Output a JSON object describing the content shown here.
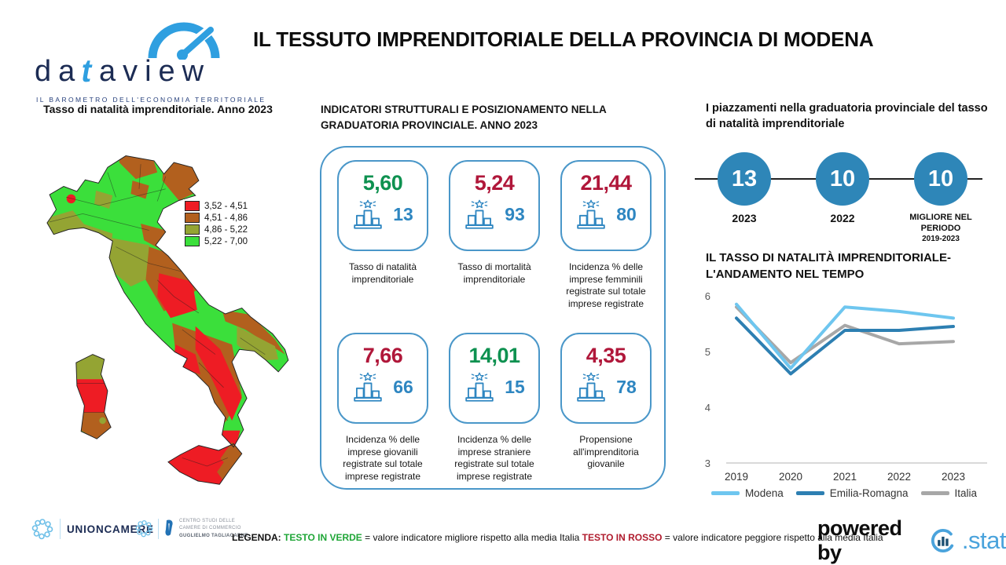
{
  "theme": {
    "accent": "#2e86c1",
    "cardBorder": "#4a97c9",
    "green": "#0e9150",
    "red": "#b0173a",
    "circleBlue": "#2e86b8",
    "navy": "#1c2c54",
    "logoBlue": "#2f9fe0",
    "statBlue": "#4aa3dc",
    "legendGreen": "#1fa637",
    "legendRed": "#b01c2e"
  },
  "header": {
    "logo_pre": "da",
    "logo_t": "t",
    "logo_post": "aview",
    "logo_subtitle": "IL BAROMETRO DELL'ECONOMIA TERRITORIALE",
    "title": "IL TESSUTO IMPRENDITORIALE DELLA PROVINCIA DI MODENA"
  },
  "map_section": {
    "title": "Tasso di natalità imprenditoriale. Anno 2023",
    "legend": [
      {
        "label": "3,52 - 4,51",
        "color": "#ee1c24"
      },
      {
        "label": "4,51 - 4,86",
        "color": "#b2601e"
      },
      {
        "label": "4,86 - 5,22",
        "color": "#94a433"
      },
      {
        "label": "5,22 - 7,00",
        "color": "#3bdf3b"
      }
    ]
  },
  "indicators_section": {
    "title": "INDICATORI STRUTTURALI E POSIZIONAMENTO NELLA GRADUATORIA PROVINCIALE. ANNO 2023",
    "cards": [
      {
        "value": "5,60",
        "color": "green",
        "rank": "13",
        "label": "Tasso di natalità imprenditoriale"
      },
      {
        "value": "5,24",
        "color": "red",
        "rank": "93",
        "label": "Tasso di mortalità imprenditoriale"
      },
      {
        "value": "21,44",
        "color": "red",
        "rank": "80",
        "label": "Incidenza % delle imprese femminili registrate sul totale imprese registrate"
      },
      {
        "value": "7,66",
        "color": "red",
        "rank": "66",
        "label": "Incidenza % delle imprese giovanili registrate sul totale imprese registrate"
      },
      {
        "value": "14,01",
        "color": "green",
        "rank": "15",
        "label": "Incidenza % delle imprese straniere registrate sul totale imprese registrate"
      },
      {
        "value": "4,35",
        "color": "red",
        "rank": "78",
        "label": "Propensione all'imprenditoria giovanile"
      }
    ]
  },
  "ranking_section": {
    "title": "I piazzamenti nella graduatoria provinciale del tasso di natalità imprenditoriale",
    "items": [
      {
        "value": "13",
        "label": "2023",
        "sublabel": ""
      },
      {
        "value": "10",
        "label": "2022",
        "sublabel": ""
      },
      {
        "value": "10",
        "label": "MIGLIORE NEL PERIODO",
        "sublabel": "2019-2023"
      }
    ]
  },
  "chart_data": [
    {
      "type": "line",
      "title": "IL TASSO DI NATALITÀ IMPRENDITORIALE- L'ANDAMENTO NEL TEMPO",
      "x": [
        "2019",
        "2020",
        "2021",
        "2022",
        "2023"
      ],
      "ylim": [
        3,
        6
      ],
      "yticks": [
        3,
        4,
        5,
        6
      ],
      "grid": false,
      "legend_position": "bottom",
      "series": [
        {
          "name": "Modena",
          "color": "#6ec6ef",
          "values": [
            5.85,
            4.7,
            5.8,
            5.72,
            5.6
          ]
        },
        {
          "name": "Emilia-Romagna",
          "color": "#2d7fb2",
          "values": [
            5.6,
            4.6,
            5.38,
            5.38,
            5.45
          ]
        },
        {
          "name": "Italia",
          "color": "#a7a7a7",
          "values": [
            5.8,
            4.8,
            5.47,
            5.14,
            5.18
          ]
        }
      ]
    },
    {
      "type": "heatmap",
      "subtype": "choropleth",
      "title": "Tasso di natalità imprenditoriale. Anno 2023",
      "geography": "Italy, provinces",
      "bins": [
        "3,52 - 4,51",
        "4,51 - 4,86",
        "4,86 - 5,22",
        "5,22 - 7,00"
      ],
      "bin_colors": [
        "#ee1c24",
        "#b2601e",
        "#94a433",
        "#3bdf3b"
      ]
    }
  ],
  "footer": {
    "unioncamere": "UNIONCAMERE",
    "tagliacarne_lines": [
      "CENTRO STUDI DELLE",
      "CAMERE DI COMMERCIO",
      "GUGLIELMO TAGLIACARNE"
    ],
    "legend_label": "LEGENDA:",
    "legend_green_term": "TESTO IN VERDE",
    "legend_green_text": "= valore indicatore migliore rispetto alla media Italia",
    "legend_red_term": "TESTO IN ROSSO",
    "legend_red_text": "= valore indicatore peggiore rispetto alla media Italia",
    "powered_by": "powered by",
    "stat": ".stat"
  }
}
